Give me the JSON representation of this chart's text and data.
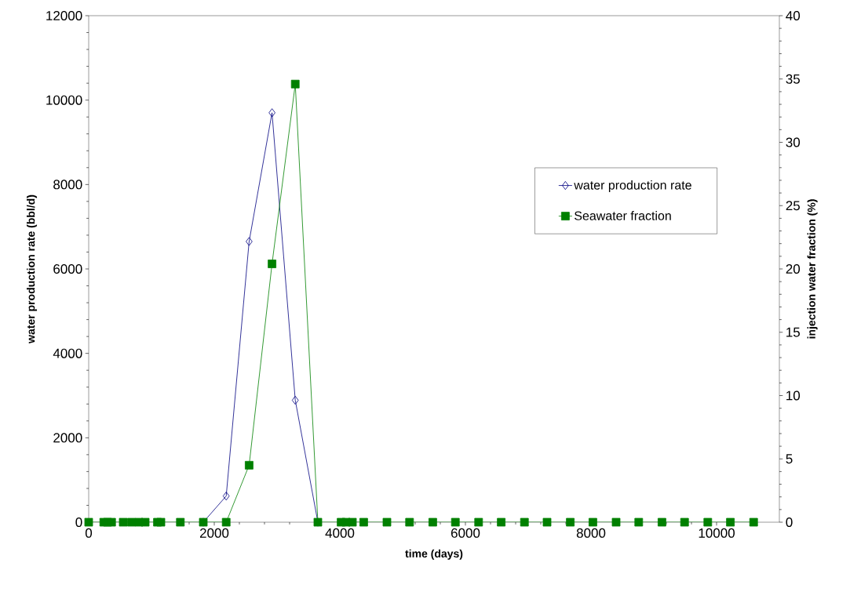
{
  "chart_data": {
    "type": "line",
    "xlabel": "time (days)",
    "ylabel": "water production rate (bbl/d)",
    "y2label": "injection water fraction (%)",
    "xlim": [
      0,
      11000
    ],
    "xticks": [
      0,
      2000,
      4000,
      6000,
      8000,
      10000
    ],
    "ylim": [
      0,
      12000
    ],
    "yticks": [
      0,
      2000,
      4000,
      6000,
      8000,
      10000,
      12000
    ],
    "y2lim": [
      0,
      40
    ],
    "y2ticks": [
      0,
      5,
      10,
      15,
      20,
      25,
      30,
      35,
      40
    ],
    "grid": false,
    "legend": "right",
    "series": [
      {
        "name": "water production rate",
        "color": "#000080",
        "marker": "diamond",
        "x": [
          1825,
          2190,
          2555,
          2920,
          3290,
          3650
        ],
        "values": [
          0,
          620,
          6650,
          9700,
          2890,
          0
        ]
      },
      {
        "name": "Seawater fraction",
        "color": "#008000",
        "marker": "square",
        "axis": "y2",
        "x": [
          0,
          240,
          300,
          365,
          550,
          680,
          800,
          900,
          1095,
          1150,
          1460,
          1825,
          2190,
          2555,
          2920,
          3290,
          3650,
          4020,
          4100,
          4200,
          4380,
          4750,
          5110,
          5480,
          5840,
          6210,
          6570,
          6940,
          7300,
          7670,
          8030,
          8400,
          8760,
          9130,
          9490,
          9860,
          10220,
          10590
        ],
        "values": [
          0,
          0,
          0,
          0,
          0,
          0,
          0,
          0,
          0,
          0,
          0,
          0,
          0,
          4.5,
          20.4,
          34.6,
          0,
          0,
          0,
          0,
          0,
          0,
          0,
          0,
          0,
          0,
          0,
          0,
          0,
          0,
          0,
          0,
          0,
          0,
          0,
          0,
          0,
          0
        ]
      }
    ]
  }
}
